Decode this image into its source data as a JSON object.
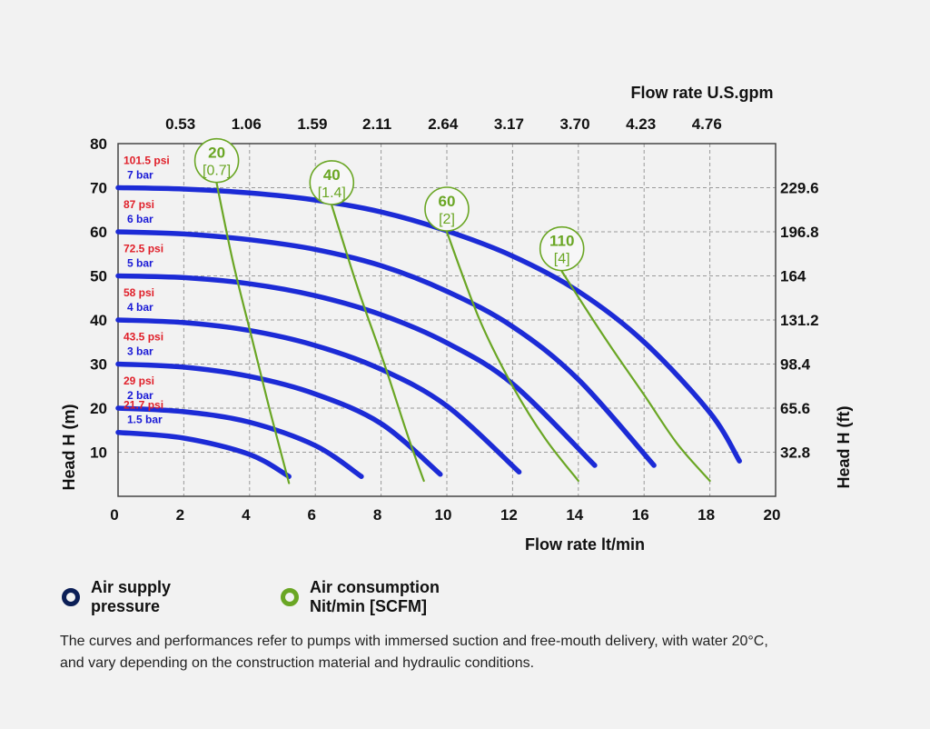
{
  "chart_data": {
    "type": "line",
    "x_bottom_label": "Flow rate lt/min",
    "x_bottom_ticks": [
      "0",
      "2",
      "4",
      "6",
      "8",
      "10",
      "12",
      "14",
      "16",
      "18",
      "20"
    ],
    "x_bottom_range": [
      0,
      20
    ],
    "x_top_label": "Flow rate U.S.gpm",
    "x_top_ticks": [
      "0.53",
      "1.06",
      "1.59",
      "2.11",
      "2.64",
      "3.17",
      "3.70",
      "4.23",
      "4.76"
    ],
    "y_left_label": "Head H (m)",
    "y_left_ticks": [
      "10",
      "20",
      "30",
      "40",
      "50",
      "60",
      "70",
      "80"
    ],
    "y_left_range": [
      0,
      80
    ],
    "y_right_label": "Head H (ft)",
    "y_right_ticks": [
      "32.8",
      "65.6",
      "98.4",
      "131.2",
      "164",
      "196.8",
      "229.6"
    ],
    "grid": true,
    "series": [
      {
        "name": "7 bar",
        "psi": "101.5 psi",
        "bar": "7 bar",
        "x": [
          0,
          2,
          4,
          6,
          8,
          10,
          12,
          14,
          16,
          18,
          18.9
        ],
        "y": [
          70,
          69.7,
          68.8,
          67.2,
          64.5,
          60.2,
          54.5,
          46.5,
          35,
          19,
          8
        ]
      },
      {
        "name": "6 bar",
        "psi": "87 psi",
        "bar": "6 bar",
        "x": [
          0,
          2,
          4,
          6,
          8,
          10,
          12,
          14,
          16.3
        ],
        "y": [
          60,
          59.5,
          58.2,
          56,
          52.3,
          46.5,
          38.5,
          26.5,
          7
        ]
      },
      {
        "name": "5 bar",
        "psi": "72.5 psi",
        "bar": "5 bar",
        "x": [
          0,
          2,
          4,
          6,
          8,
          10,
          12,
          14.5
        ],
        "y": [
          50,
          49.6,
          48.2,
          45.5,
          41.2,
          34.8,
          25.5,
          7
        ]
      },
      {
        "name": "4 bar",
        "psi": "58 psi",
        "bar": "4 bar",
        "x": [
          0,
          2,
          4,
          6,
          8,
          10,
          12.2
        ],
        "y": [
          40,
          39.4,
          37.6,
          34.2,
          28.8,
          20.5,
          5.5
        ]
      },
      {
        "name": "3 bar",
        "psi": "43.5 psi",
        "bar": "3 bar",
        "x": [
          0,
          2,
          4,
          6,
          8,
          9.8
        ],
        "y": [
          30,
          29.3,
          27.2,
          23.2,
          16.5,
          5
        ]
      },
      {
        "name": "2 bar",
        "psi": "29 psi",
        "bar": "2 bar",
        "x": [
          0,
          2,
          4,
          6,
          7.4
        ],
        "y": [
          20,
          19.2,
          16.8,
          11.5,
          4.5
        ]
      },
      {
        "name": "1.5 bar",
        "psi": "21.7 psi",
        "bar": "1.5 bar",
        "x": [
          0,
          2,
          4,
          5.2
        ],
        "y": [
          14.5,
          13.2,
          9.5,
          4.5
        ]
      }
    ],
    "air_consumption": [
      {
        "value": "20",
        "scfm": "[0.7]",
        "x": [
          3.0,
          3.5,
          4.1,
          4.6,
          5.2
        ],
        "y": [
          71,
          53,
          35,
          20,
          3
        ]
      },
      {
        "value": "40",
        "scfm": "[1.4]",
        "x": [
          6.5,
          7.3,
          8.1,
          8.8,
          9.3
        ],
        "y": [
          66,
          47,
          30,
          14,
          3.5
        ]
      },
      {
        "value": "60",
        "scfm": "[2]",
        "x": [
          10.0,
          11.0,
          12.0,
          13.0,
          14.0
        ],
        "y": [
          60,
          40,
          25,
          13,
          3.5
        ]
      },
      {
        "value": "110",
        "scfm": "[4]",
        "x": [
          13.5,
          14.8,
          16.0,
          17.0,
          18.0
        ],
        "y": [
          51,
          36,
          23,
          12,
          3.5
        ]
      }
    ]
  },
  "legend": {
    "air_supply": "Air supply\npressure",
    "air_consumption": "Air consumption\nNit/min [SCFM]"
  },
  "colors": {
    "pressure_curve": "#1c2bd6",
    "air_curve": "#6aa624",
    "psi_label": "#e0202a",
    "bar_label": "#1a1ad6",
    "legend_ring_blue": "#0c1f57"
  },
  "note": "The curves and performances refer to pumps with immersed suction and free-mouth delivery, with water 20°C, and vary depending on the construction material and hydraulic conditions."
}
